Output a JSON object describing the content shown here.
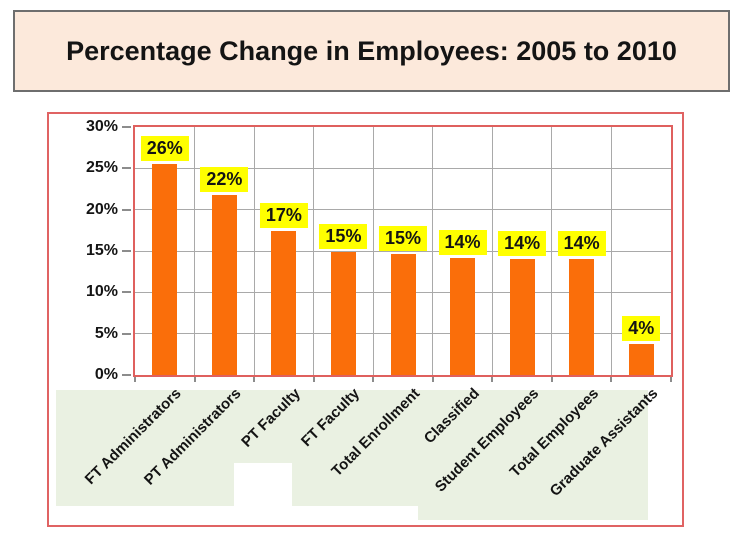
{
  "title": "Percentage Change in Employees: 2005 to 2010",
  "colors": {
    "title_bg": "#fce9db",
    "title_border": "#6e6e6e",
    "frame_border": "#e06363",
    "plot_border": "#df605e",
    "gridline": "#a9a9a9",
    "bar": "#fa6e0a",
    "data_label_bg": "#ffff00",
    "data_label_text": "#141414",
    "category_band_bg": "#eaf1e2",
    "axis_text": "#141414"
  },
  "chart_data": {
    "type": "bar",
    "title": "Percentage Change in Employees: 2005 to 2010",
    "categories": [
      "FT Administrators",
      "PT Administrators",
      "PT Faculty",
      "FT Faculty",
      "Total Enrollment",
      "Classified",
      "Student Employees",
      "Total Employees",
      "Graduate Assistants"
    ],
    "values": [
      26,
      22,
      17,
      15,
      15,
      14,
      14,
      14,
      4
    ],
    "labels": [
      "26%",
      "22%",
      "17%",
      "15%",
      "15%",
      "14%",
      "14%",
      "14%",
      "4%"
    ],
    "bar_heights_pct": [
      25.5,
      21.8,
      17.4,
      14.9,
      14.6,
      14.2,
      14.0,
      14.0,
      3.8
    ],
    "xlabel": "",
    "ylabel": "",
    "ylim": [
      0,
      30
    ],
    "y_tick_values": [
      0,
      5,
      10,
      15,
      20,
      25,
      30
    ],
    "y_tick_labels": [
      "0%",
      "5%",
      "10%",
      "15%",
      "20%",
      "25%",
      "30%"
    ],
    "grid": true,
    "legend": false
  }
}
